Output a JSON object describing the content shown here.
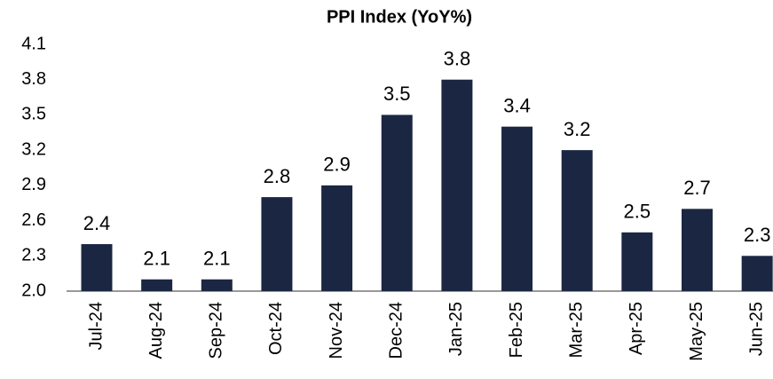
{
  "chart_data": {
    "type": "bar",
    "title": "PPI Index (YoY%)",
    "categories": [
      "Jul-24",
      "Aug-24",
      "Sep-24",
      "Oct-24",
      "Nov-24",
      "Dec-24",
      "Jan-25",
      "Feb-25",
      "Mar-25",
      "Apr-25",
      "May-25",
      "Jun-25"
    ],
    "values": [
      2.4,
      2.1,
      2.1,
      2.8,
      2.9,
      3.5,
      3.8,
      3.4,
      3.2,
      2.5,
      2.7,
      2.3
    ],
    "color": "#1b2742",
    "ylim": [
      2.0,
      4.1
    ],
    "yticks": [
      {
        "value": 2.0,
        "label": "2.0"
      },
      2.3,
      2.6,
      2.9,
      3.2,
      3.5,
      3.8,
      4.1
    ],
    "grid": false
  }
}
